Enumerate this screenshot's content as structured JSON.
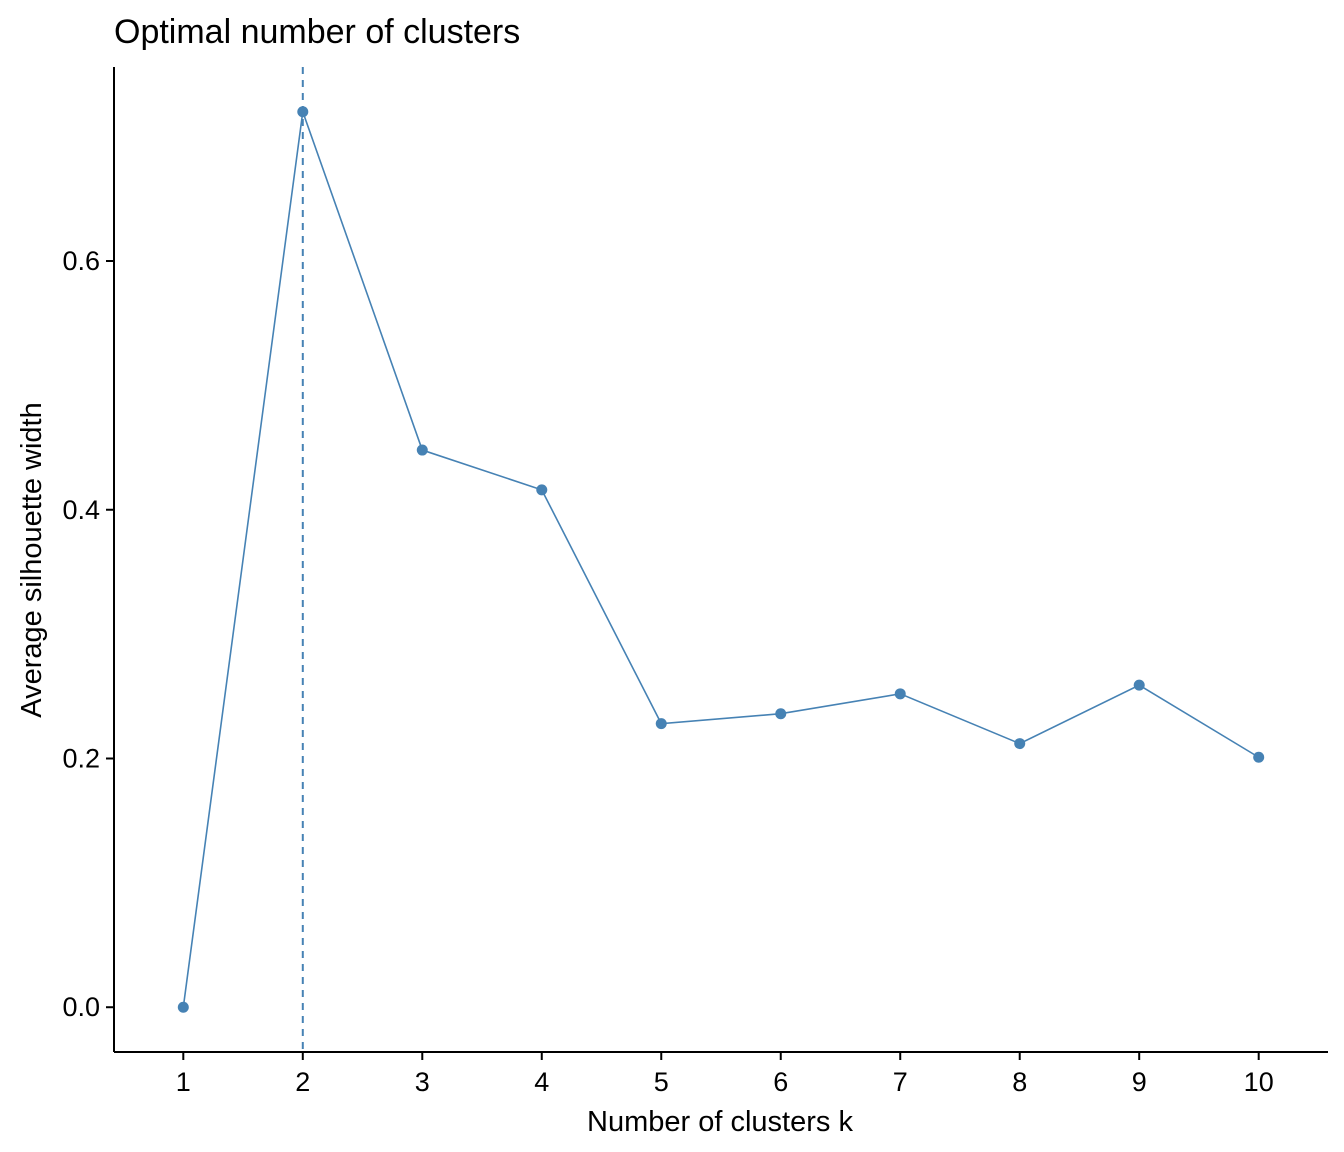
{
  "chart_data": {
    "type": "line",
    "title": "Optimal number of clusters",
    "xlabel": "Number of clusters k",
    "ylabel": "Average silhouette width",
    "x": [
      1,
      2,
      3,
      4,
      5,
      6,
      7,
      8,
      9,
      10
    ],
    "x_tick_labels": [
      "1",
      "2",
      "3",
      "4",
      "5",
      "6",
      "7",
      "8",
      "9",
      "10"
    ],
    "y_ticks": [
      0.0,
      0.2,
      0.4,
      0.6
    ],
    "y_tick_labels": [
      "0.0",
      "0.2",
      "0.4",
      "0.6"
    ],
    "xlim": [
      0.42,
      10.58
    ],
    "ylim": [
      -0.036,
      0.756
    ],
    "series": [
      {
        "values": [
          0.0,
          0.72,
          0.448,
          0.416,
          0.228,
          0.236,
          0.252,
          0.212,
          0.259,
          0.201
        ]
      }
    ],
    "reference_line": {
      "orientation": "vertical",
      "x": 2,
      "style": "dashed"
    },
    "grid": false,
    "legend": "none",
    "colors": {
      "series": "#4682B4",
      "axis": "#000000"
    }
  }
}
